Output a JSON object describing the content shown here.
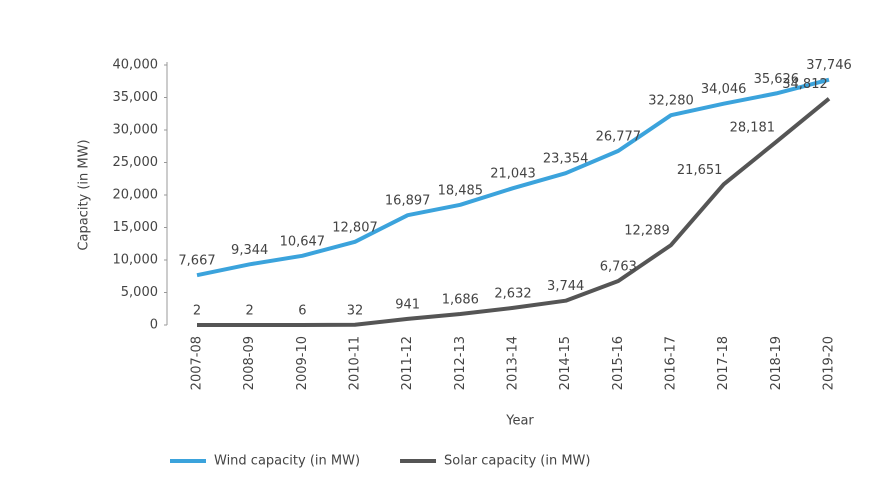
{
  "chart_data": {
    "type": "line",
    "x_label": "Year",
    "y_label": "Capacity (in MW)",
    "categories": [
      "2007-08",
      "2008-09",
      "2009-10",
      "2010-11",
      "2011-12",
      "2012-13",
      "2013-14",
      "2014-15",
      "2015-16",
      "2016-17",
      "2017-18",
      "2018-19",
      "2019-20"
    ],
    "series": [
      {
        "name": "Wind capacity (in MW)",
        "color": "#3ba3dc",
        "values": [
          7667,
          9344,
          10647,
          12807,
          16897,
          18485,
          21043,
          23354,
          26777,
          32280,
          34046,
          35626,
          37746
        ],
        "value_labels": [
          "7,667",
          "9,344",
          "10,647",
          "12,807",
          "16,897",
          "18,485",
          "21,043",
          "23,354",
          "26,777",
          "32,280",
          "34,046",
          "35,626",
          "37,746"
        ]
      },
      {
        "name": "Solar capacity (in MW)",
        "color": "#555555",
        "values": [
          2,
          2,
          6,
          32,
          941,
          1686,
          2632,
          3744,
          6763,
          12289,
          21651,
          28181,
          34812
        ],
        "value_labels": [
          "2",
          "2",
          "6",
          "32",
          "941",
          "1,686",
          "2,632",
          "3,744",
          "6,763",
          "12,289",
          "21,651",
          "28,181",
          "34,812"
        ]
      }
    ],
    "ylim": [
      0,
      40000
    ],
    "yticks": [
      0,
      {
        "value": 5000,
        "label": "5,000"
      },
      {
        "value": 10000,
        "label": "10,000"
      },
      {
        "value": 15000,
        "label": "15,000"
      },
      {
        "value": 20000,
        "label": "20,000"
      },
      {
        "value": 25000,
        "label": "25,000"
      },
      {
        "value": 30000,
        "label": "30,000"
      },
      {
        "value": 35000,
        "label": "35,000"
      },
      {
        "value": 40000,
        "label": "40,000"
      }
    ],
    "grid": false,
    "legend": "bottom"
  }
}
